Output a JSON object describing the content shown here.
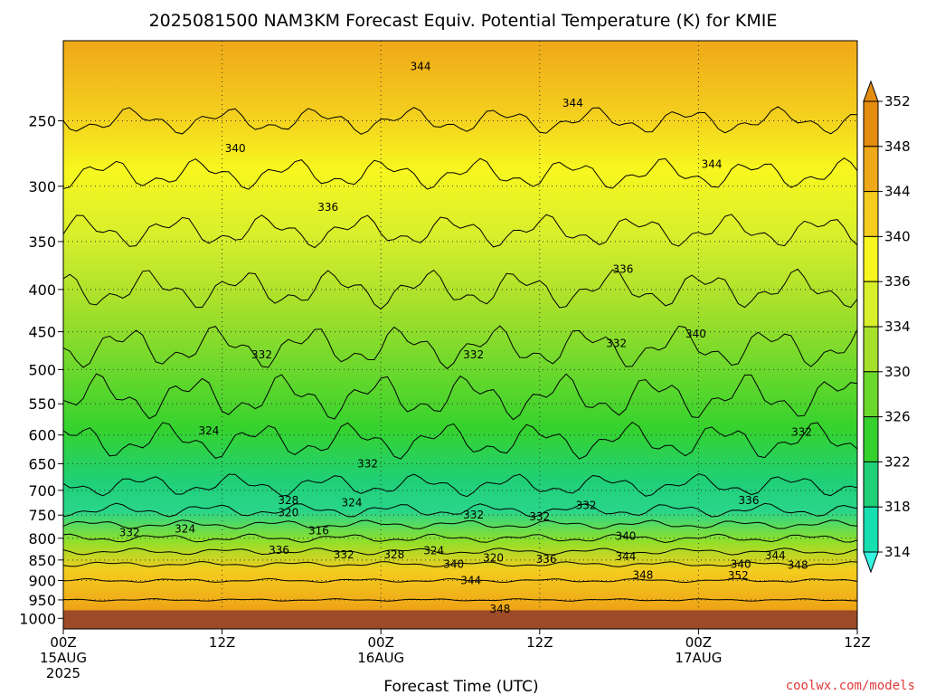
{
  "chart_data": {
    "type": "heatmap",
    "title": "2025081500 NAM3KM Forecast Equiv. Potential Temperature (K) for KMIE",
    "xlabel": "Forecast Time (UTC)",
    "ylabel": "",
    "x_ticks": [
      {
        "hour": 0,
        "lines": [
          "00Z",
          "15AUG",
          "2025"
        ]
      },
      {
        "hour": 12,
        "lines": [
          "12Z"
        ]
      },
      {
        "hour": 24,
        "lines": [
          "00Z",
          "16AUG"
        ]
      },
      {
        "hour": 36,
        "lines": [
          "12Z"
        ]
      },
      {
        "hour": 48,
        "lines": [
          "00Z",
          "17AUG"
        ]
      },
      {
        "hour": 60,
        "lines": [
          "12Z"
        ]
      }
    ],
    "xlim": [
      0,
      60
    ],
    "y_ticks": [
      250,
      300,
      350,
      400,
      450,
      500,
      550,
      600,
      650,
      700,
      750,
      800,
      850,
      900,
      950,
      1000
    ],
    "ylim": [
      1030,
      200
    ],
    "yscale": "log",
    "ground_pressure": 978,
    "ground_color": "#9c4a28",
    "grid": true,
    "colorbar": {
      "levels": [
        314,
        318,
        322,
        326,
        330,
        334,
        336,
        340,
        344,
        348,
        352
      ],
      "colors": [
        "#33f5e0",
        "#17e0b0",
        "#1fd078",
        "#35d22e",
        "#6bd82c",
        "#a6e02b",
        "#d8ef2c",
        "#f7f71f",
        "#f4cd1e",
        "#efa818",
        "#e38c0e"
      ],
      "extend": "both"
    },
    "contour_labels": [
      {
        "text": "344",
        "hour": 27.0,
        "p": 215
      },
      {
        "text": "344",
        "hour": 38.5,
        "p": 238
      },
      {
        "text": "340",
        "hour": 13.0,
        "p": 270
      },
      {
        "text": "344",
        "hour": 49.0,
        "p": 282
      },
      {
        "text": "336",
        "hour": 20.0,
        "p": 318
      },
      {
        "text": "336",
        "hour": 42.3,
        "p": 378
      },
      {
        "text": "340",
        "hour": 47.8,
        "p": 453
      },
      {
        "text": "332",
        "hour": 15.0,
        "p": 480
      },
      {
        "text": "332",
        "hour": 31.0,
        "p": 480
      },
      {
        "text": "332",
        "hour": 41.8,
        "p": 465
      },
      {
        "text": "324",
        "hour": 11.0,
        "p": 593
      },
      {
        "text": "332",
        "hour": 55.8,
        "p": 595
      },
      {
        "text": "332",
        "hour": 23.0,
        "p": 650
      },
      {
        "text": "336",
        "hour": 51.8,
        "p": 720
      },
      {
        "text": "328",
        "hour": 17.0,
        "p": 720
      },
      {
        "text": "320",
        "hour": 17.0,
        "p": 745
      },
      {
        "text": "324",
        "hour": 21.8,
        "p": 725
      },
      {
        "text": "332",
        "hour": 31.0,
        "p": 750
      },
      {
        "text": "332",
        "hour": 36.0,
        "p": 753
      },
      {
        "text": "332",
        "hour": 39.5,
        "p": 730
      },
      {
        "text": "332",
        "hour": 5.0,
        "p": 787
      },
      {
        "text": "324",
        "hour": 9.2,
        "p": 780
      },
      {
        "text": "316",
        "hour": 19.3,
        "p": 783
      },
      {
        "text": "340",
        "hour": 42.5,
        "p": 795
      },
      {
        "text": "336",
        "hour": 16.3,
        "p": 827
      },
      {
        "text": "332",
        "hour": 21.2,
        "p": 838
      },
      {
        "text": "328",
        "hour": 25.0,
        "p": 838
      },
      {
        "text": "324",
        "hour": 28.0,
        "p": 828
      },
      {
        "text": "320",
        "hour": 32.5,
        "p": 845
      },
      {
        "text": "336",
        "hour": 36.5,
        "p": 848
      },
      {
        "text": "344",
        "hour": 42.5,
        "p": 842
      },
      {
        "text": "340",
        "hour": 29.5,
        "p": 860
      },
      {
        "text": "340",
        "hour": 51.2,
        "p": 860
      },
      {
        "text": "344",
        "hour": 53.8,
        "p": 840
      },
      {
        "text": "348",
        "hour": 55.5,
        "p": 862
      },
      {
        "text": "344",
        "hour": 30.8,
        "p": 900
      },
      {
        "text": "348",
        "hour": 43.8,
        "p": 887
      },
      {
        "text": "352",
        "hour": 51.0,
        "p": 888
      },
      {
        "text": "348",
        "hour": 33.0,
        "p": 975
      }
    ],
    "credit": "coolwx.com/models"
  }
}
